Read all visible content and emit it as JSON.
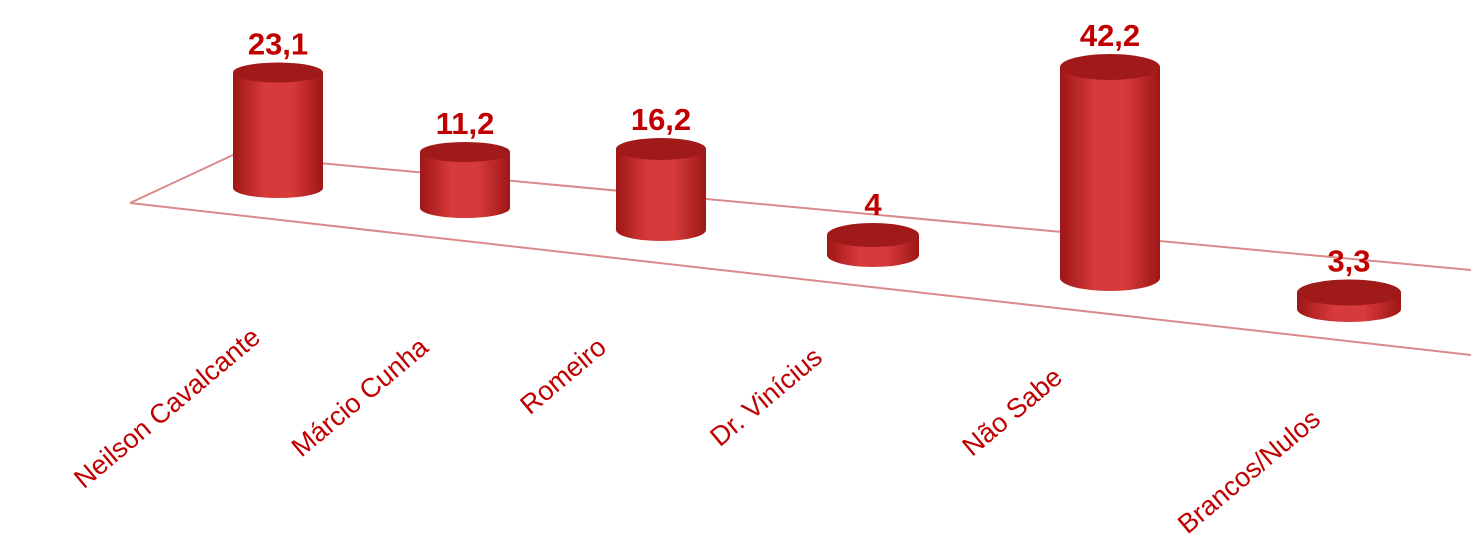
{
  "chart_data": {
    "type": "bar",
    "style": "3d-cylinder",
    "categories": [
      "Neilson Cavalcante",
      "Márcio Cunha",
      "Romeiro",
      "Dr. Vinícius",
      "Não Sabe",
      "Brancos/Nulos"
    ],
    "values": [
      23.1,
      11.2,
      16.2,
      4,
      42.2,
      3.3
    ],
    "data_labels": [
      "23,1",
      "11,2",
      "16,2",
      "4",
      "42,2",
      "3,3"
    ],
    "title": "",
    "xlabel": "",
    "ylabel": "",
    "grid": false,
    "legend": "none"
  },
  "colors": {
    "bar_body": "#d63a3a",
    "bar_body_dark": "#9e1616",
    "bar_top": "#a11a1a",
    "label_text": "#c00000",
    "floor_line": "#d98a8a"
  }
}
